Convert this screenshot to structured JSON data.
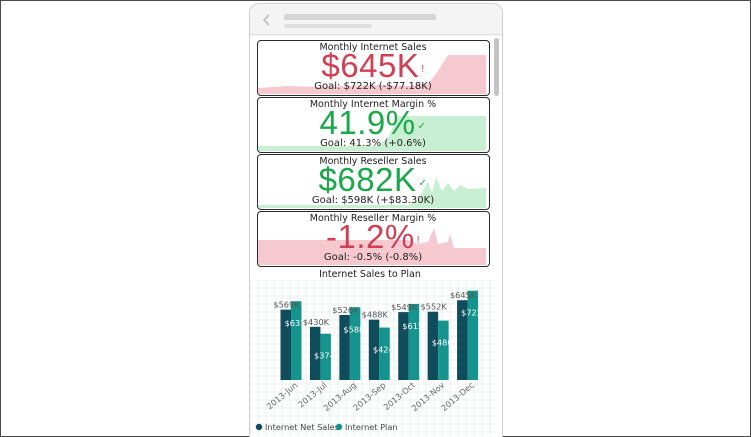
{
  "kpis": [
    {
      "title": "Monthly Internet Sales",
      "value": "$645K",
      "status": "!",
      "goal": "Goal: $722K (-$77.18K)",
      "state": "bad",
      "color": "#d13f54",
      "fill": "#f5c9cf"
    },
    {
      "title": "Monthly Internet Margin %",
      "value": "41.9%",
      "status": "✓",
      "goal": "Goal: 41.3% (+0.6%)",
      "state": "good",
      "color": "#1aa84a",
      "fill": "#c9efd3"
    },
    {
      "title": "Monthly Reseller Sales",
      "value": "$682K",
      "status": "✓",
      "goal": "Goal: $598K (+$83.30K)",
      "state": "good",
      "color": "#1aa84a",
      "fill": "#c9efd3"
    },
    {
      "title": "Monthly Reseller Margin %",
      "value": "-1.2%",
      "status": "!",
      "goal": "Goal: -0.5% (-0.8%)",
      "state": "bad",
      "color": "#d13f54",
      "fill": "#f5c9cf"
    }
  ],
  "chart_data": {
    "type": "bar",
    "title": "Internet Sales to Plan",
    "categories": [
      "2013-Jun",
      "2013-Jul",
      "2013-Aug",
      "2013-Sep",
      "2013-Oct",
      "2013-Nov",
      "2013-Dec"
    ],
    "series": [
      {
        "name": "Internet Net Sales",
        "color": "#0f4c5c",
        "values": [
          569,
          430,
          526,
          488,
          549,
          552,
          645
        ],
        "labels": [
          "$569K",
          "$430K",
          "$526K",
          "$488K",
          "$549K",
          "$552K",
          "$645K"
        ]
      },
      {
        "name": "Internet Plan",
        "color": "#14948c",
        "values": [
          637,
          374,
          588,
          424,
          615,
          480,
          722
        ],
        "labels": [
          "$637",
          "$374",
          "$588",
          "$424",
          "$615",
          "$480",
          "$722"
        ]
      }
    ],
    "ylim": [
      0,
      760
    ],
    "grid": true,
    "legend": "bottom-left"
  },
  "icons": {
    "back": "chevron-left-icon"
  }
}
